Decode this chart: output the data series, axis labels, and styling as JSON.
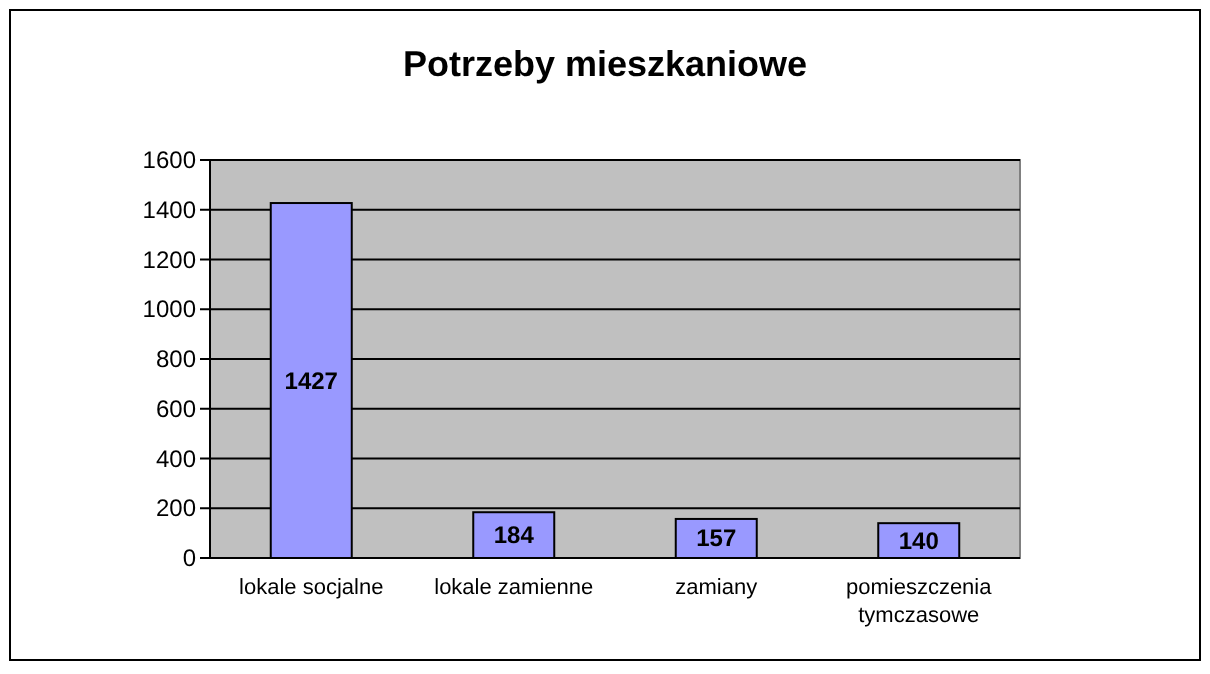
{
  "chart_data": {
    "type": "bar",
    "title": "Potrzeby mieszkaniowe",
    "categories": [
      "lokale socjalne",
      "lokale zamienne",
      "zamiany",
      "pomieszczenia tymczasowe"
    ],
    "values": [
      1427,
      184,
      157,
      140
    ],
    "color": "#9999ff",
    "ylim": [
      0,
      1600
    ],
    "yticks": [
      0,
      200,
      400,
      600,
      800,
      1000,
      1200,
      1400,
      1600
    ],
    "grid": "y",
    "data_labels": true
  }
}
